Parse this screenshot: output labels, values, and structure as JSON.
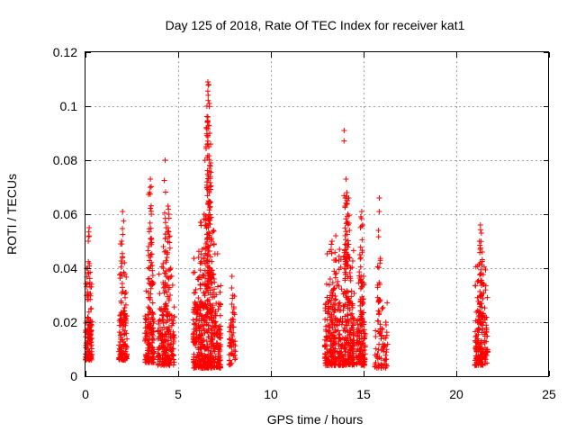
{
  "chart_data": {
    "type": "scatter",
    "title": "Day 125 of 2018, Rate Of TEC Index for receiver kat1",
    "xlabel": "GPS time / hours",
    "ylabel": "ROTI / TECUs",
    "xlim": [
      0,
      25
    ],
    "ylim": [
      0,
      0.12
    ],
    "xticks": [
      "0",
      "5",
      "10",
      "15",
      "20",
      "25"
    ],
    "yticks": [
      "0",
      "0.02",
      "0.04",
      "0.06",
      "0.08",
      "0.1",
      "0.12"
    ],
    "grid": true,
    "marker": "+",
    "color": "#ff0000",
    "series": [
      {
        "name": "ROTI",
        "clusters": [
          {
            "x_range": [
              0.0,
              0.35
            ],
            "count": 120,
            "y_low": 0.006,
            "y_typ": 0.014,
            "peaks": [
              [
                0.2,
                0.055
              ],
              [
                0.15,
                0.05
              ],
              [
                0.1,
                0.04
              ],
              [
                0.25,
                0.033
              ]
            ]
          },
          {
            "x_range": [
              1.8,
              2.25
            ],
            "count": 110,
            "y_low": 0.006,
            "y_typ": 0.015,
            "peaks": [
              [
                2.0,
                0.061
              ],
              [
                1.95,
                0.05
              ],
              [
                2.1,
                0.042
              ],
              [
                2.15,
                0.031
              ]
            ]
          },
          {
            "x_range": [
              3.2,
              3.7
            ],
            "count": 130,
            "y_low": 0.005,
            "y_typ": 0.016,
            "peaks": [
              [
                3.5,
                0.073
              ],
              [
                3.45,
                0.068
              ],
              [
                3.55,
                0.06
              ],
              [
                3.4,
                0.048
              ],
              [
                3.6,
                0.041
              ]
            ]
          },
          {
            "x_range": [
              3.9,
              4.8
            ],
            "count": 200,
            "y_low": 0.004,
            "y_typ": 0.017,
            "peaks": [
              [
                4.3,
                0.08
              ],
              [
                4.45,
                0.063
              ],
              [
                4.5,
                0.06
              ],
              [
                4.35,
                0.055
              ],
              [
                4.2,
                0.048
              ],
              [
                4.4,
                0.044
              ],
              [
                4.6,
                0.04
              ]
            ]
          },
          {
            "x_range": [
              5.8,
              7.3
            ],
            "count": 420,
            "y_low": 0.003,
            "y_typ": 0.018,
            "peaks": [
              [
                6.6,
                0.109
              ],
              [
                6.65,
                0.108
              ],
              [
                6.55,
                0.1
              ],
              [
                6.6,
                0.096
              ],
              [
                6.7,
                0.09
              ],
              [
                6.5,
                0.085
              ],
              [
                6.75,
                0.079
              ],
              [
                6.7,
                0.077
              ],
              [
                6.55,
                0.07
              ],
              [
                6.65,
                0.064
              ],
              [
                6.4,
                0.06
              ],
              [
                6.2,
                0.057
              ],
              [
                6.9,
                0.054
              ],
              [
                6.8,
                0.05
              ],
              [
                6.3,
                0.047
              ],
              [
                6.1,
                0.044
              ]
            ]
          },
          {
            "x_range": [
              7.75,
              8.1
            ],
            "count": 45,
            "y_low": 0.004,
            "y_typ": 0.012,
            "peaks": [
              [
                7.9,
                0.037
              ],
              [
                7.95,
                0.03
              ],
              [
                8.0,
                0.025
              ]
            ]
          },
          {
            "x_range": [
              12.9,
              14.5
            ],
            "count": 380,
            "y_low": 0.004,
            "y_typ": 0.018,
            "peaks": [
              [
                13.95,
                0.091
              ],
              [
                14.05,
                0.073
              ],
              [
                14.1,
                0.068
              ],
              [
                14.2,
                0.066
              ],
              [
                14.0,
                0.063
              ],
              [
                14.15,
                0.06
              ],
              [
                14.1,
                0.057
              ],
              [
                13.5,
                0.052
              ],
              [
                13.3,
                0.05
              ],
              [
                13.7,
                0.047
              ],
              [
                13.4,
                0.043
              ],
              [
                14.3,
                0.04
              ],
              [
                13.2,
                0.036
              ]
            ]
          },
          {
            "x_range": [
              14.6,
              15.1
            ],
            "count": 110,
            "y_low": 0.004,
            "y_typ": 0.014,
            "peaks": [
              [
                14.9,
                0.061
              ],
              [
                14.85,
                0.059
              ],
              [
                14.95,
                0.056
              ],
              [
                14.8,
                0.045
              ],
              [
                15.0,
                0.037
              ],
              [
                14.9,
                0.033
              ]
            ]
          },
          {
            "x_range": [
              15.6,
              16.3
            ],
            "count": 60,
            "y_low": 0.003,
            "y_typ": 0.011,
            "peaks": [
              [
                15.85,
                0.066
              ],
              [
                15.8,
                0.054
              ],
              [
                15.9,
                0.028
              ],
              [
                16.0,
                0.025
              ],
              [
                16.2,
                0.02
              ]
            ]
          },
          {
            "x_range": [
              21.0,
              21.7
            ],
            "count": 170,
            "y_low": 0.004,
            "y_typ": 0.016,
            "peaks": [
              [
                21.3,
                0.056
              ],
              [
                21.35,
                0.053
              ],
              [
                21.25,
                0.05
              ],
              [
                21.4,
                0.046
              ],
              [
                21.3,
                0.042
              ],
              [
                21.35,
                0.038
              ],
              [
                21.45,
                0.034
              ]
            ]
          }
        ]
      }
    ]
  }
}
